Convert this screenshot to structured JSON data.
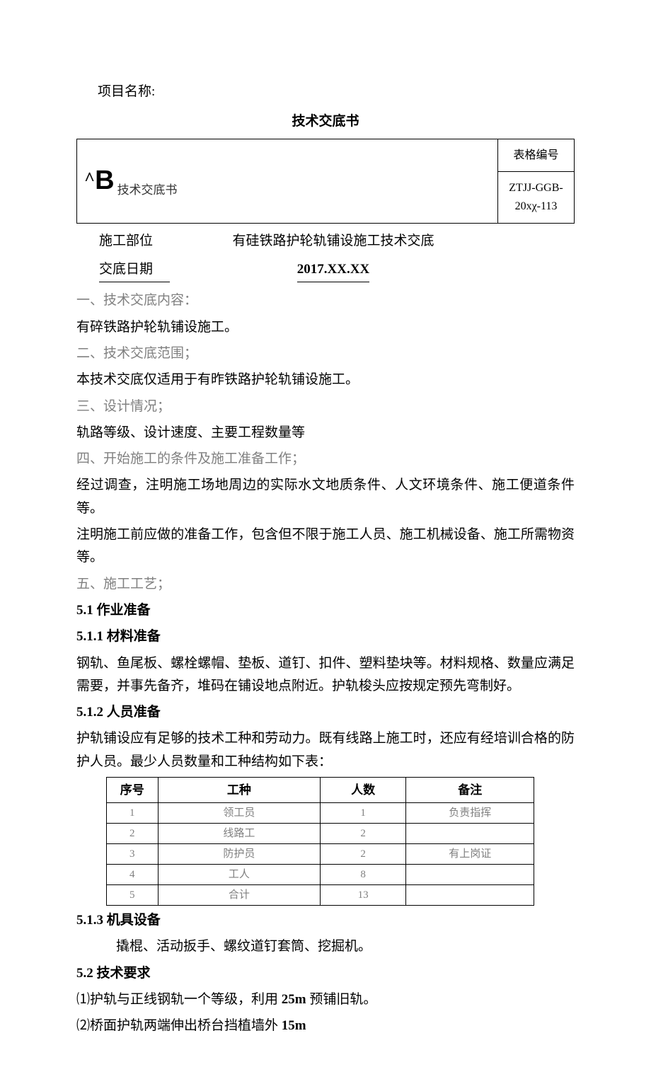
{
  "project_name_label": "项目名称:",
  "doc_title": "技术交底书",
  "header": {
    "left_caret": "^",
    "left_big": "B",
    "left_sub": "技术交底书",
    "right_top": "表格编号",
    "right_bottom": "ZTJJ-GGB-20xχ-113"
  },
  "meta": {
    "dept_label": "施工部位",
    "dept_value": "有硅铁路护轮轨铺设施工技术交底",
    "date_label": "交底日期",
    "date_value": "2017.XX.XX"
  },
  "sections": {
    "s1_title": "一、技术交底内容：",
    "s1_body": "有碎铁路护轮轨铺设施工。",
    "s2_title": "二、技术交底范围；",
    "s2_body": "本技术交底仅适用于有昨铁路护轮轨铺设施工。",
    "s3_title": "三、设计情况；",
    "s3_body": "轨路等级、设计速度、主要工程数量等",
    "s4_title": "四、开始施工的条件及施工准备工作；",
    "s4_body1": "经过调查，注明施工场地周边的实际水文地质条件、人文环境条件、施工便道条件等。",
    "s4_body2": "注明施工前应做的准备工作，包含但不限于施工人员、施工机械设备、施工所需物资等。",
    "s5_title": "五、施工工艺；",
    "s5_1": "5.1 作业准备",
    "s5_1_1": "5.1.1 材料准备",
    "s5_1_1_body": "钢轨、鱼尾板、螺栓螺帽、垫板、道钉、扣件、塑料垫块等。材料规格、数量应满足需要，并事先备齐，堆码在铺设地点附近。护轨梭头应按规定预先弯制好。",
    "s5_1_2": "5.1.2 人员准备",
    "s5_1_2_body": "护轨铺设应有足够的技术工种和劳动力。既有线路上施工时，还应有经培训合格的防护人员。最少人员数量和工种结构如下表：",
    "s5_1_3": "5.1.3 机具设备",
    "s5_1_3_body": "撬棍、活动扳手、螺纹道钉套筒、挖掘机。",
    "s5_2": "5.2 技术要求",
    "s5_2_1_pre": "⑴护轨与正线钢轨一个等级，利用 ",
    "s5_2_1_bold": "25m",
    "s5_2_1_post": " 预铺旧轨。",
    "s5_2_2_pre": "⑵桥面护轨两端伸出桥台挡植墙外 ",
    "s5_2_2_bold": "15m"
  },
  "personnel_table": {
    "headers": [
      "序号",
      "工种",
      "人数",
      "备注"
    ],
    "rows": [
      [
        "1",
        "领工员",
        "1",
        "负责指挥"
      ],
      [
        "2",
        "线路工",
        "2",
        ""
      ],
      [
        "3",
        "防护员",
        "2",
        "有上岗证"
      ],
      [
        "4",
        "工人",
        "8",
        ""
      ],
      [
        "5",
        "合计",
        "13",
        ""
      ]
    ]
  }
}
